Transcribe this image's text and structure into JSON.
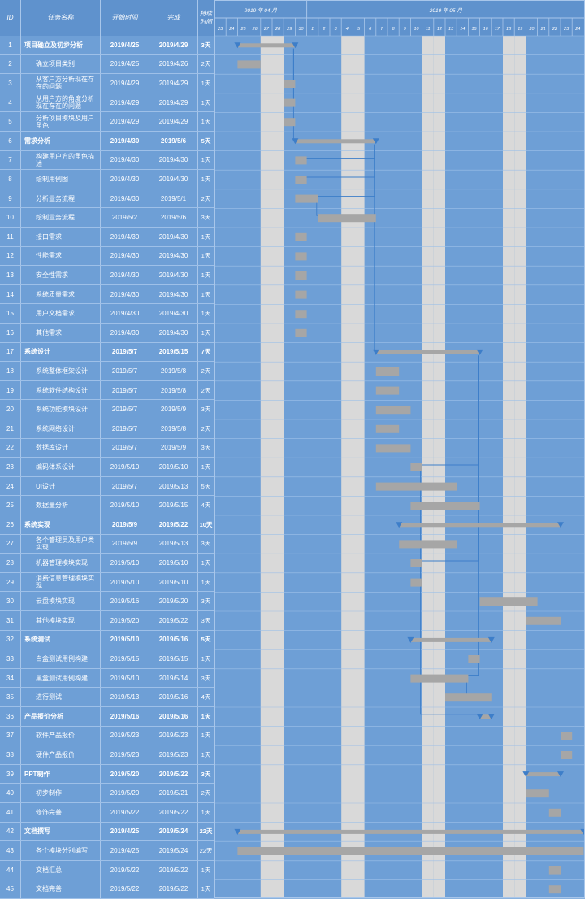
{
  "header": {
    "id": "ID",
    "name": "任务名称",
    "start": "开始时间",
    "end": "完成",
    "duration": "持续时间"
  },
  "chart_data": {
    "type": "gantt",
    "month_labels": [
      "2019 年 04 月",
      "2019 年 05 月"
    ],
    "day_labels": [
      "23",
      "24",
      "25",
      "26",
      "27",
      "28",
      "29",
      "30",
      "1",
      "2",
      "3",
      "4",
      "5",
      "6",
      "7",
      "8",
      "9",
      "10",
      "11",
      "12",
      "13",
      "14",
      "15",
      "16",
      "17",
      "18",
      "19",
      "20",
      "21",
      "22",
      "23",
      "24"
    ],
    "weekend_day_indices": [
      4,
      5,
      11,
      12,
      18,
      19,
      25,
      26
    ],
    "colors": {
      "bar": "#a6a6a6",
      "weekend": "#d9d9d9",
      "link": "#3d7ec9",
      "marker": "#3d7ec9"
    },
    "tasks": [
      {
        "id": "1",
        "name": "项目确立及初步分析",
        "start": "2019/4/25",
        "end": "2019/4/29",
        "dur": "3天",
        "summary": true,
        "s": 2,
        "e": 7
      },
      {
        "id": "2",
        "name": "确立项目类别",
        "start": "2019/4/25",
        "end": "2019/4/26",
        "dur": "2天",
        "summary": false,
        "s": 2,
        "e": 4
      },
      {
        "id": "3",
        "name": "从客户方分析现在存在的问题",
        "start": "2019/4/29",
        "end": "2019/4/29",
        "dur": "1天",
        "summary": false,
        "s": 6,
        "e": 7
      },
      {
        "id": "4",
        "name": "从用户方的角度分析现在存在的问题",
        "start": "2019/4/29",
        "end": "2019/4/29",
        "dur": "1天",
        "summary": false,
        "s": 6,
        "e": 7
      },
      {
        "id": "5",
        "name": "分析项目模块及用户角色",
        "start": "2019/4/29",
        "end": "2019/4/29",
        "dur": "1天",
        "summary": false,
        "s": 6,
        "e": 7
      },
      {
        "id": "6",
        "name": "需求分析",
        "start": "2019/4/30",
        "end": "2019/5/6",
        "dur": "5天",
        "summary": true,
        "s": 7,
        "e": 14
      },
      {
        "id": "7",
        "name": "构建用户方的角色描述",
        "start": "2019/4/30",
        "end": "2019/4/30",
        "dur": "1天",
        "summary": false,
        "s": 7,
        "e": 8
      },
      {
        "id": "8",
        "name": "绘制用例图",
        "start": "2019/4/30",
        "end": "2019/4/30",
        "dur": "1天",
        "summary": false,
        "s": 7,
        "e": 8
      },
      {
        "id": "9",
        "name": "分析业务流程",
        "start": "2019/4/30",
        "end": "2019/5/1",
        "dur": "2天",
        "summary": false,
        "s": 7,
        "e": 9
      },
      {
        "id": "10",
        "name": "绘制业务流程",
        "start": "2019/5/2",
        "end": "2019/5/6",
        "dur": "3天",
        "summary": false,
        "s": 9,
        "e": 14
      },
      {
        "id": "11",
        "name": "接口需求",
        "start": "2019/4/30",
        "end": "2019/4/30",
        "dur": "1天",
        "summary": false,
        "s": 7,
        "e": 8
      },
      {
        "id": "12",
        "name": "性能需求",
        "start": "2019/4/30",
        "end": "2019/4/30",
        "dur": "1天",
        "summary": false,
        "s": 7,
        "e": 8
      },
      {
        "id": "13",
        "name": "安全性需求",
        "start": "2019/4/30",
        "end": "2019/4/30",
        "dur": "1天",
        "summary": false,
        "s": 7,
        "e": 8
      },
      {
        "id": "14",
        "name": "系统质量需求",
        "start": "2019/4/30",
        "end": "2019/4/30",
        "dur": "1天",
        "summary": false,
        "s": 7,
        "e": 8
      },
      {
        "id": "15",
        "name": "用户文档需求",
        "start": "2019/4/30",
        "end": "2019/4/30",
        "dur": "1天",
        "summary": false,
        "s": 7,
        "e": 8
      },
      {
        "id": "16",
        "name": "其他需求",
        "start": "2019/4/30",
        "end": "2019/4/30",
        "dur": "1天",
        "summary": false,
        "s": 7,
        "e": 8
      },
      {
        "id": "17",
        "name": "系统设计",
        "start": "2019/5/7",
        "end": "2019/5/15",
        "dur": "7天",
        "summary": true,
        "s": 14,
        "e": 23
      },
      {
        "id": "18",
        "name": "系统整体框架设计",
        "start": "2019/5/7",
        "end": "2019/5/8",
        "dur": "2天",
        "summary": false,
        "s": 14,
        "e": 16
      },
      {
        "id": "19",
        "name": "系统软件结构设计",
        "start": "2019/5/7",
        "end": "2019/5/8",
        "dur": "2天",
        "summary": false,
        "s": 14,
        "e": 16
      },
      {
        "id": "20",
        "name": "系统功能模块设计",
        "start": "2019/5/7",
        "end": "2019/5/9",
        "dur": "3天",
        "summary": false,
        "s": 14,
        "e": 17
      },
      {
        "id": "21",
        "name": "系统网络设计",
        "start": "2019/5/7",
        "end": "2019/5/8",
        "dur": "2天",
        "summary": false,
        "s": 14,
        "e": 16
      },
      {
        "id": "22",
        "name": "数据库设计",
        "start": "2019/5/7",
        "end": "2019/5/9",
        "dur": "3天",
        "summary": false,
        "s": 14,
        "e": 17
      },
      {
        "id": "23",
        "name": "编码体系设计",
        "start": "2019/5/10",
        "end": "2019/5/10",
        "dur": "1天",
        "summary": false,
        "s": 17,
        "e": 18
      },
      {
        "id": "24",
        "name": "UI设计",
        "start": "2019/5/7",
        "end": "2019/5/13",
        "dur": "5天",
        "summary": false,
        "s": 14,
        "e": 21
      },
      {
        "id": "25",
        "name": "数据量分析",
        "start": "2019/5/10",
        "end": "2019/5/15",
        "dur": "4天",
        "summary": false,
        "s": 17,
        "e": 23
      },
      {
        "id": "26",
        "name": "系统实现",
        "start": "2019/5/9",
        "end": "2019/5/22",
        "dur": "10天",
        "summary": true,
        "s": 16,
        "e": 30
      },
      {
        "id": "27",
        "name": "各个管理员及用户类实现",
        "start": "2019/5/9",
        "end": "2019/5/13",
        "dur": "3天",
        "summary": false,
        "s": 16,
        "e": 21
      },
      {
        "id": "28",
        "name": "机器管理模块实现",
        "start": "2019/5/10",
        "end": "2019/5/10",
        "dur": "1天",
        "summary": false,
        "s": 17,
        "e": 18
      },
      {
        "id": "29",
        "name": "消费信息管理模块实现",
        "start": "2019/5/10",
        "end": "2019/5/10",
        "dur": "1天",
        "summary": false,
        "s": 17,
        "e": 18
      },
      {
        "id": "30",
        "name": "云盘模块实现",
        "start": "2019/5/16",
        "end": "2019/5/20",
        "dur": "3天",
        "summary": false,
        "s": 23,
        "e": 28
      },
      {
        "id": "31",
        "name": "其他模块实现",
        "start": "2019/5/20",
        "end": "2019/5/22",
        "dur": "3天",
        "summary": false,
        "s": 27,
        "e": 30
      },
      {
        "id": "32",
        "name": "系统测试",
        "start": "2019/5/10",
        "end": "2019/5/16",
        "dur": "5天",
        "summary": true,
        "s": 17,
        "e": 24
      },
      {
        "id": "33",
        "name": "白盒测试用例构建",
        "start": "2019/5/15",
        "end": "2019/5/15",
        "dur": "1天",
        "summary": false,
        "s": 22,
        "e": 23
      },
      {
        "id": "34",
        "name": "黑盒测试用例构建",
        "start": "2019/5/10",
        "end": "2019/5/14",
        "dur": "3天",
        "summary": false,
        "s": 17,
        "e": 22
      },
      {
        "id": "35",
        "name": "进行测试",
        "start": "2019/5/13",
        "end": "2019/5/16",
        "dur": "4天",
        "summary": false,
        "s": 20,
        "e": 24
      },
      {
        "id": "36",
        "name": "产品报价分析",
        "start": "2019/5/16",
        "end": "2019/5/16",
        "dur": "1天",
        "summary": true,
        "s": 23,
        "e": 24
      },
      {
        "id": "37",
        "name": "软件产品报价",
        "start": "2019/5/23",
        "end": "2019/5/23",
        "dur": "1天",
        "summary": false,
        "s": 30,
        "e": 31
      },
      {
        "id": "38",
        "name": "硬件产品报价",
        "start": "2019/5/23",
        "end": "2019/5/23",
        "dur": "1天",
        "summary": false,
        "s": 30,
        "e": 31
      },
      {
        "id": "39",
        "name": "PPT制作",
        "start": "2019/5/20",
        "end": "2019/5/22",
        "dur": "3天",
        "summary": true,
        "s": 27,
        "e": 30
      },
      {
        "id": "40",
        "name": "初步制作",
        "start": "2019/5/20",
        "end": "2019/5/21",
        "dur": "2天",
        "summary": false,
        "s": 27,
        "e": 29
      },
      {
        "id": "41",
        "name": "修饰完善",
        "start": "2019/5/22",
        "end": "2019/5/22",
        "dur": "1天",
        "summary": false,
        "s": 29,
        "e": 30
      },
      {
        "id": "42",
        "name": "文档撰写",
        "start": "2019/4/25",
        "end": "2019/5/24",
        "dur": "22天",
        "summary": true,
        "s": 2,
        "e": 32
      },
      {
        "id": "43",
        "name": "各个模块分别编写",
        "start": "2019/4/25",
        "end": "2019/5/24",
        "dur": "22天",
        "summary": false,
        "s": 2,
        "e": 32
      },
      {
        "id": "44",
        "name": "文档汇总",
        "start": "2019/5/22",
        "end": "2019/5/22",
        "dur": "1天",
        "summary": false,
        "s": 29,
        "e": 30
      },
      {
        "id": "45",
        "name": "文档完善",
        "start": "2019/5/22",
        "end": "2019/5/22",
        "dur": "1天",
        "summary": false,
        "s": 29,
        "e": 30
      }
    ]
  }
}
